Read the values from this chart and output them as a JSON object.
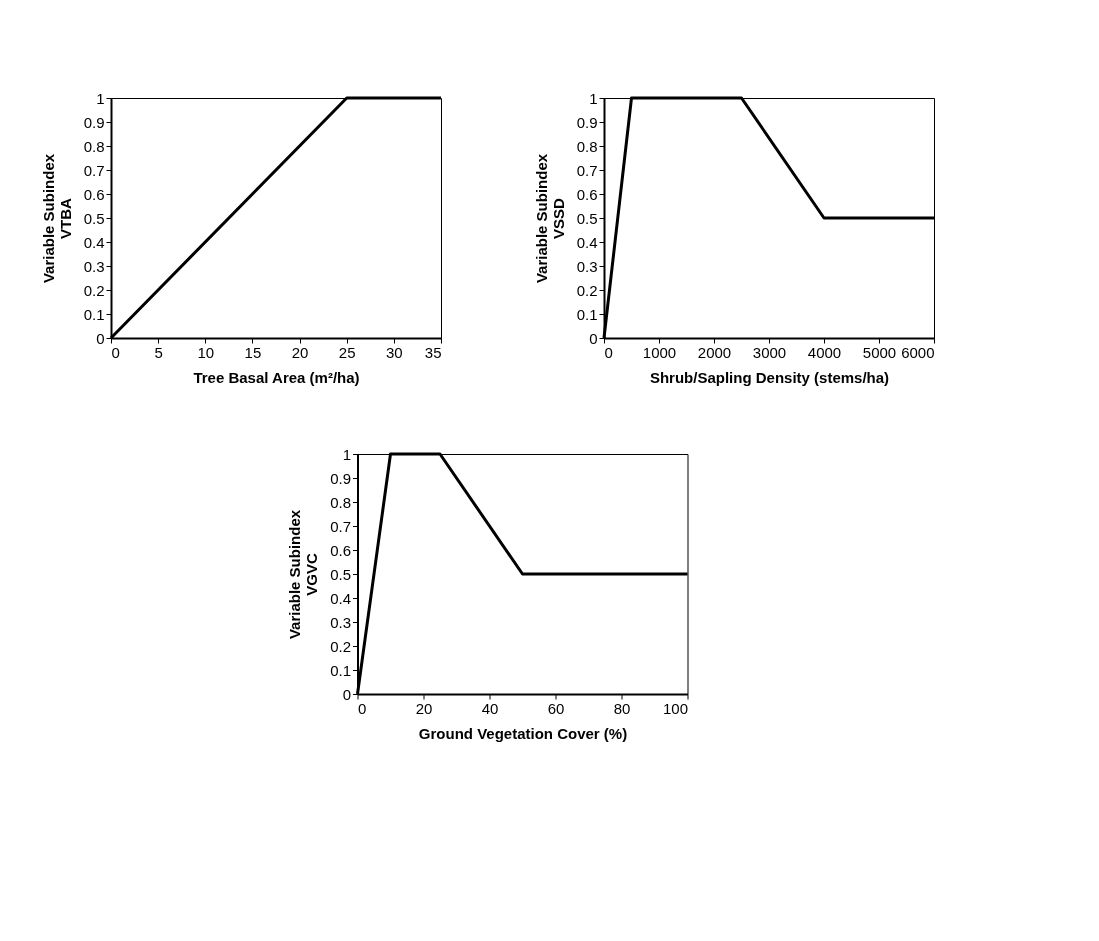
{
  "chart_data": [
    {
      "type": "line",
      "xlabel": "Tree Basal Area (m²/ha)",
      "ylabel": [
        "Variable Subindex",
        "VTBA"
      ],
      "x": [
        0,
        25,
        35
      ],
      "series": [
        {
          "color": "#000000",
          "values": [
            0,
            1,
            1
          ]
        }
      ],
      "xlim": [
        0,
        35
      ],
      "xticks": [
        0,
        5,
        10,
        15,
        20,
        25,
        30,
        35
      ],
      "ylim": [
        0,
        1
      ],
      "yticks": [
        0,
        0.1,
        0.2,
        0.3,
        0.4,
        0.5,
        0.6,
        0.7,
        0.8,
        0.9,
        1
      ],
      "grid": false,
      "marker": "none",
      "line_style": "solid"
    },
    {
      "type": "line",
      "xlabel": "Shrub/Sapling Density (stems/ha)",
      "ylabel": [
        "Variable Subindex",
        "VSSD"
      ],
      "x": [
        0,
        500,
        2500,
        4000,
        6000
      ],
      "series": [
        {
          "color": "#000000",
          "values": [
            0,
            1,
            1,
            0.5,
            0.5
          ]
        }
      ],
      "xlim": [
        0,
        6000
      ],
      "xticks": [
        0,
        1000,
        2000,
        3000,
        4000,
        5000,
        6000
      ],
      "ylim": [
        0,
        1
      ],
      "yticks": [
        0,
        0.1,
        0.2,
        0.3,
        0.4,
        0.5,
        0.6,
        0.7,
        0.8,
        0.9,
        1
      ],
      "grid": false,
      "marker": "none",
      "line_style": "solid"
    },
    {
      "type": "line",
      "xlabel": "Ground Vegetation Cover (%)",
      "ylabel": [
        "Variable Subindex",
        "VGVC"
      ],
      "x": [
        0,
        10,
        25,
        50,
        100
      ],
      "series": [
        {
          "color": "#000000",
          "values": [
            0,
            1,
            1,
            0.5,
            0.5
          ]
        }
      ],
      "xlim": [
        0,
        100
      ],
      "xticks": [
        0,
        20,
        40,
        60,
        80,
        100
      ],
      "ylim": [
        0,
        1
      ],
      "yticks": [
        0,
        0.1,
        0.2,
        0.3,
        0.4,
        0.5,
        0.6,
        0.7,
        0.8,
        0.9,
        1
      ],
      "grid": false,
      "marker": "none",
      "line_style": "solid"
    }
  ]
}
